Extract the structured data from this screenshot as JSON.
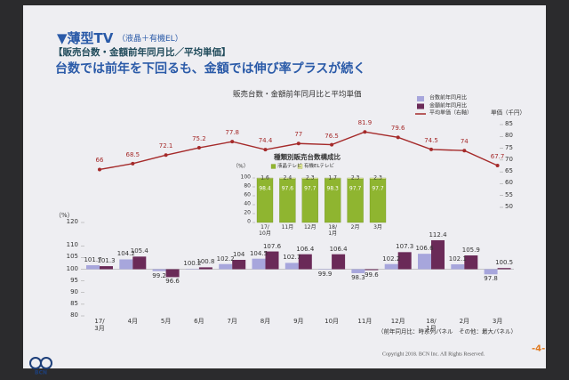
{
  "slide": {
    "title": "▼薄型TV",
    "title_note": "（液晶＋有機EL）",
    "subtitle": "【販売台数・金額前年同月比／平均単価】",
    "headline": "台数では前年を下回るも、金額では伸び率プラスが続く",
    "source_note": "（前年同月比：時系列パネル　その他：最大パネル）",
    "copyright": "Copyright 2018. BCN Inc.  All Rights Reserved.",
    "page": "-4-",
    "logo": "BCN"
  },
  "chart_data": [
    {
      "type": "bar",
      "title": "販売台数・金額前年同月比と平均単価",
      "categories": [
        "17/\n3月",
        "4月",
        "5月",
        "6月",
        "7月",
        "8月",
        "9月",
        "10月",
        "11月",
        "12月",
        "18/\n1月",
        "2月",
        "3月"
      ],
      "series": [
        {
          "name": "台数前年同月比",
          "color": "#a7a6dc",
          "values": [
            101.7,
            104.2,
            99.2,
            100.2,
            102.2,
            104.5,
            102.7,
            99.9,
            98.3,
            102.2,
            106.6,
            102.1,
            97.8
          ]
        },
        {
          "name": "金額前年同月比",
          "color": "#6a2a58",
          "values": [
            101.3,
            105.4,
            96.6,
            100.8,
            104.0,
            107.6,
            106.4,
            106.4,
            99.6,
            107.3,
            112.4,
            105.9,
            100.5
          ]
        },
        {
          "name": "平均単価（右軸）",
          "type": "line",
          "axis": "y2",
          "color": "#a52a2a",
          "values": [
            66.0,
            68.5,
            72.1,
            75.2,
            77.8,
            74.4,
            77.0,
            76.5,
            81.9,
            79.6,
            74.5,
            74.0,
            67.7
          ]
        }
      ],
      "ylim": [
        80,
        120
      ],
      "yticks": [
        80,
        85,
        90,
        95,
        100,
        105,
        110,
        120
      ],
      "y_label": "（%）",
      "y2lim": [
        50,
        85
      ],
      "y2ticks": [
        50,
        55,
        60,
        65,
        70,
        75,
        80,
        85
      ],
      "y2_label": "単価（千円）"
    },
    {
      "type": "stacked_bar",
      "title": "種類別販売台数構成比",
      "categories": [
        "17/\n10月",
        "11月",
        "12月",
        "18/\n1月",
        "2月",
        "3月"
      ],
      "series": [
        {
          "name": "液晶テレビ",
          "color": "#8fb530",
          "values": [
            98.4,
            97.6,
            97.7,
            98.3,
            97.7,
            97.7
          ]
        },
        {
          "name": "有機ELテレビ",
          "color": "#e3ea9a",
          "values": [
            1.6,
            2.4,
            2.3,
            1.7,
            2.3,
            2.3
          ]
        }
      ],
      "ylim": [
        0,
        100
      ],
      "yticks": [
        0,
        20,
        40,
        60,
        80,
        100
      ],
      "y_label": "（%）"
    }
  ]
}
